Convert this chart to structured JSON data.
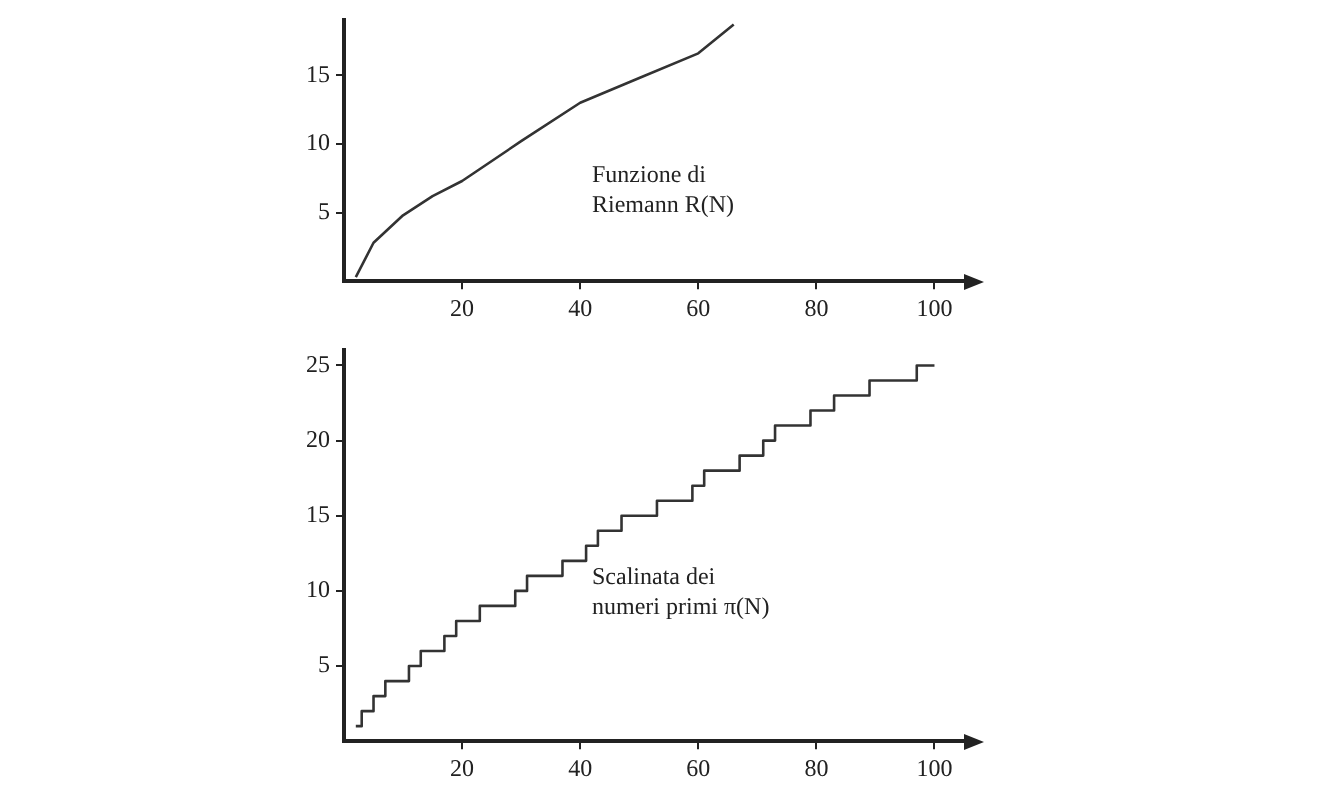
{
  "chart_data": [
    {
      "type": "line",
      "x": [
        2,
        5,
        10,
        15,
        20,
        30,
        40,
        50,
        60,
        66
      ],
      "series": [
        {
          "name": "Funzione di Riemann R(N)",
          "color": "#333333",
          "values": [
            0.3,
            2.8,
            4.8,
            6.2,
            7.3,
            10.2,
            13,
            14.8,
            16.6,
            18.7
          ]
        }
      ],
      "xlim": [
        0,
        105
      ],
      "xticks": [
        20,
        40,
        60,
        80,
        100
      ],
      "ylim": [
        0,
        19
      ],
      "yticks": [
        5,
        10,
        15
      ],
      "grid": false,
      "legend": false
    },
    {
      "type": "step",
      "x": [
        2,
        3,
        5,
        7,
        11,
        13,
        17,
        19,
        23,
        29,
        31,
        37,
        41,
        43,
        47,
        53,
        59,
        61,
        67,
        71,
        73,
        79,
        83,
        89,
        97,
        100
      ],
      "series": [
        {
          "name": "Scalinata dei numeri primi π(N)",
          "color": "#333333",
          "values": [
            1,
            2,
            3,
            4,
            5,
            6,
            7,
            8,
            9,
            10,
            11,
            12,
            13,
            14,
            15,
            16,
            17,
            18,
            19,
            20,
            21,
            22,
            23,
            24,
            25,
            25
          ]
        }
      ],
      "xlim": [
        0,
        105
      ],
      "xticks": [
        20,
        40,
        60,
        80,
        100
      ],
      "ylim": [
        0,
        26
      ],
      "yticks": [
        5,
        10,
        15,
        20,
        25
      ],
      "grid": false,
      "legend": false
    }
  ]
}
